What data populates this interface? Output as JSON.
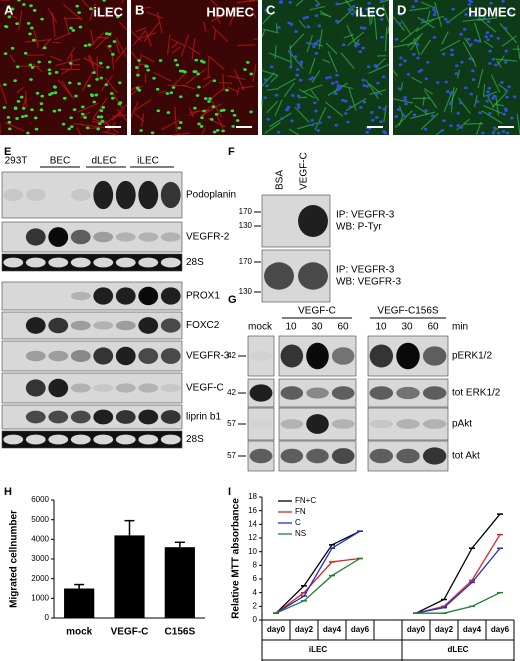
{
  "images": [
    {
      "letter": "A",
      "label": "iLEC"
    },
    {
      "letter": "B",
      "label": "HDMEC"
    },
    {
      "letter": "C",
      "label": "iLEC"
    },
    {
      "letter": "D",
      "label": "HDMEC"
    }
  ],
  "blot_e": {
    "letter": "E",
    "lanes": [
      "293T",
      "BEC",
      "dLEC",
      "iLEC"
    ],
    "rows": [
      "Podoplanin",
      "VEGFR-2",
      "28S",
      "PROX1",
      "FOXC2",
      "VEGFR-3",
      "VEGF-C",
      "liprin b1",
      "28S"
    ]
  },
  "blot_f": {
    "letter": "F",
    "lanes": [
      "BSA",
      "VEGF-C"
    ],
    "blots": [
      {
        "markers": [
          170,
          130
        ],
        "ip": "IP: VEGFR-3",
        "wb": "WB: P-Tyr"
      },
      {
        "markers": [
          170,
          130
        ],
        "ip": "IP: VEGFR-3",
        "wb": "WB: VEGFR-3"
      }
    ]
  },
  "blot_g": {
    "letter": "G",
    "groups": [
      "VEGF-C",
      "VEGF-C156S"
    ],
    "lanes": [
      "mock",
      10,
      30,
      60,
      10,
      30,
      60
    ],
    "unit": "min",
    "rows": [
      {
        "marker": 42,
        "label": "pERK1/2"
      },
      {
        "marker": 42,
        "label": "tot ERK1/2"
      },
      {
        "marker": 57,
        "label": "pAkt"
      },
      {
        "marker": 57,
        "label": "tot Akt"
      }
    ]
  },
  "chart_data": [
    {
      "type": "bar",
      "panel_letter": "H",
      "y_label": "Migrated cellnumber",
      "categories": [
        "mock",
        "VEGF-C",
        "C156S"
      ],
      "values": [
        1500,
        4200,
        3600
      ],
      "errors": [
        200,
        750,
        250
      ],
      "color": "#000000",
      "ylim": [
        0,
        6000
      ],
      "yticks": [
        0,
        1000,
        2000,
        3000,
        4000,
        5000,
        6000
      ]
    },
    {
      "type": "line",
      "panel_letter": "I",
      "y_label": "Relative MTT absorbance",
      "categories": [
        "day0",
        "day2",
        "day4",
        "day6",
        null,
        "day0",
        "day2",
        "day4",
        "day6"
      ],
      "groups": [
        "iLEC",
        "dLEC"
      ],
      "series": [
        {
          "name": "FN+C",
          "color": "#000000",
          "values": [
            1,
            5,
            11,
            13,
            null,
            1,
            3,
            10.5,
            15.5
          ]
        },
        {
          "name": "FN",
          "color": "#e02020",
          "values": [
            1,
            4,
            8.5,
            9,
            null,
            1,
            2,
            5.8,
            12.5
          ]
        },
        {
          "name": "C",
          "color": "#2030d0",
          "values": [
            1,
            3.5,
            10.5,
            13,
            null,
            1,
            1.8,
            5.5,
            10.5
          ]
        },
        {
          "name": "NS",
          "color": "#208030",
          "values": [
            1,
            2.8,
            6.5,
            9,
            null,
            1,
            1,
            2,
            4
          ]
        }
      ],
      "ylim": [
        0,
        18
      ],
      "yticks": [
        0,
        2,
        4,
        6,
        8,
        10,
        12,
        14,
        16,
        18
      ],
      "legend": "upper-left"
    }
  ]
}
